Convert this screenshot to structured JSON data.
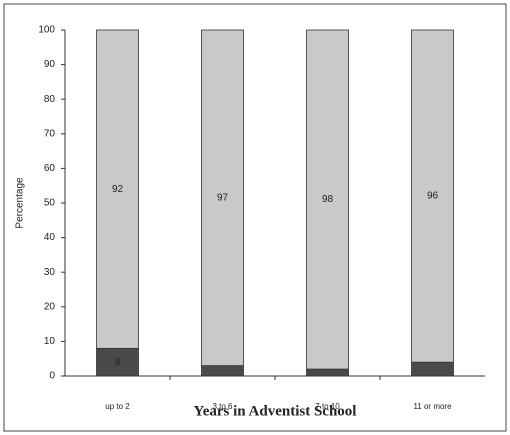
{
  "chart_data": {
    "type": "stacked_bar",
    "y_label": "Percentage",
    "x_label": "Years in Adventist School",
    "categories": [
      "up to 2",
      "3 to 6",
      "7 to 10",
      "11 or more"
    ],
    "series": [
      {
        "color": "#4a4a4a",
        "values": [
          8,
          3,
          2,
          4
        ],
        "value_labels": [
          "8",
          null,
          null,
          null
        ]
      },
      {
        "color": "#c9c9c9",
        "values": [
          92,
          97,
          98,
          96
        ]
      }
    ],
    "ylim": [
      0,
      100
    ],
    "yticks": [
      0,
      10,
      20,
      30,
      40,
      50,
      60,
      70,
      80,
      90,
      100
    ]
  }
}
